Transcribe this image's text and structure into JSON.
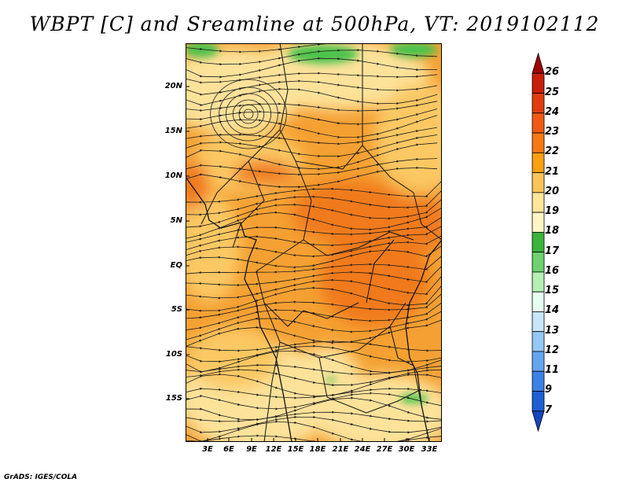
{
  "title": "WBPT [C] and Sreamline at 500hPa, VT: 2019102112",
  "footer": "GrADS: IGES/COLA",
  "map": {
    "lat_labels": [
      "20N",
      "15N",
      "10N",
      "5N",
      "EQ",
      "5S",
      "10S",
      "15S"
    ],
    "lon_labels": [
      "3E",
      "6E",
      "9E",
      "12E",
      "15E",
      "18E",
      "21E",
      "24E",
      "27E",
      "30E",
      "33E"
    ]
  },
  "colorbar": {
    "labels": [
      "26",
      "25",
      "24",
      "23",
      "22",
      "21",
      "20",
      "19",
      "18",
      "17",
      "16",
      "15",
      "14",
      "13",
      "12",
      "11",
      "9",
      "7"
    ],
    "colors": [
      "#a00000",
      "#c81e0a",
      "#e03c0f",
      "#f05a14",
      "#f57a14",
      "#f8a012",
      "#fbc45a",
      "#fde59a",
      "#fdf6c4",
      "#3cb43c",
      "#6ed26e",
      "#b4f0b4",
      "#e6fff0",
      "#c8e6fa",
      "#96c8f5",
      "#64a5f0",
      "#3c82e6",
      "#1e5fd2",
      "#1446be"
    ]
  },
  "colors": {
    "orange_dark": "#f07a1e",
    "orange": "#f5a032",
    "light_orange": "#fbc864",
    "pale_yellow": "#fde29a",
    "green": "#4cc24c",
    "streamline": "#1a1a1a"
  }
}
